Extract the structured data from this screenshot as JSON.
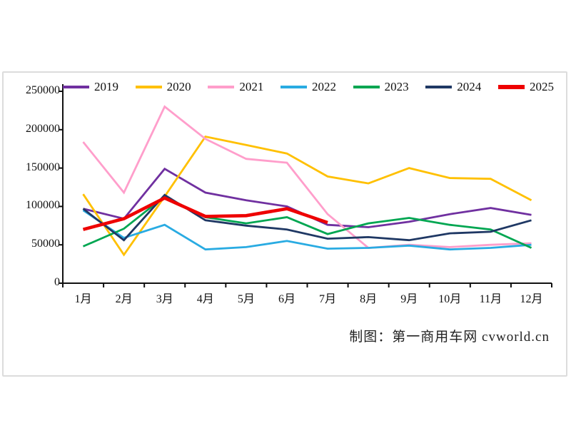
{
  "caption": "制图：第一商用车网 cvworld.cn",
  "chart_data": {
    "type": "line",
    "title": "",
    "xlabel": "",
    "ylabel": "",
    "grid": false,
    "legend_position": "top",
    "ylim": [
      0,
      250000
    ],
    "yticks": [
      0,
      50000,
      100000,
      150000,
      200000,
      250000
    ],
    "ytick_labels": [
      "0",
      "50000",
      "100000",
      "150000",
      "200000",
      "250000"
    ],
    "categories": [
      "1月",
      "2月",
      "3月",
      "4月",
      "5月",
      "6月",
      "7月",
      "8月",
      "9月",
      "10月",
      "11月",
      "12月"
    ],
    "series": [
      {
        "name": "2019",
        "color": "#7030a0",
        "width": 2.8,
        "values": [
          97000,
          84000,
          149000,
          118000,
          108000,
          100000,
          76000,
          73000,
          80000,
          90000,
          98000,
          89000
        ]
      },
      {
        "name": "2020",
        "color": "#ffc000",
        "width": 2.8,
        "values": [
          116000,
          37000,
          113000,
          191000,
          180000,
          169000,
          139000,
          130000,
          150000,
          137000,
          136000,
          108000
        ]
      },
      {
        "name": "2021",
        "color": "#ff9ecb",
        "width": 2.8,
        "values": [
          184000,
          118000,
          230000,
          188000,
          162000,
          157000,
          90000,
          46000,
          50000,
          47000,
          50000,
          52000
        ]
      },
      {
        "name": "2022",
        "color": "#29abe2",
        "width": 2.8,
        "values": [
          95000,
          59000,
          76000,
          44000,
          47000,
          55000,
          45000,
          46000,
          49000,
          44000,
          46000,
          50000
        ]
      },
      {
        "name": "2023",
        "color": "#00a651",
        "width": 2.8,
        "values": [
          48000,
          71000,
          113000,
          86000,
          78000,
          86000,
          64000,
          78000,
          85000,
          76000,
          70000,
          46000
        ]
      },
      {
        "name": "2024",
        "color": "#1f3864",
        "width": 2.8,
        "values": [
          97000,
          56000,
          115000,
          82000,
          75000,
          70000,
          58000,
          60000,
          56000,
          65000,
          67000,
          82000
        ]
      },
      {
        "name": "2025",
        "color": "#ee0000",
        "width": 4.6,
        "values": [
          70000,
          84000,
          111000,
          87000,
          88000,
          97000,
          79000,
          null,
          null,
          null,
          null,
          null
        ]
      }
    ]
  }
}
